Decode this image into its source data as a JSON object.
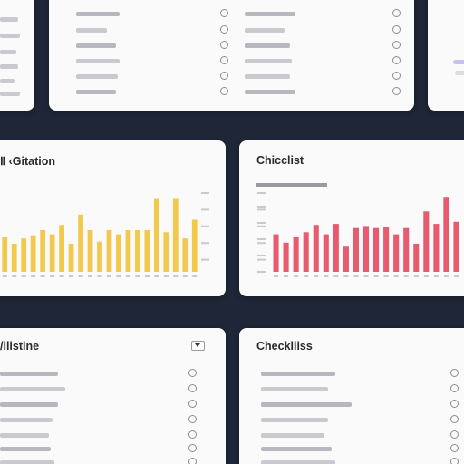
{
  "cards": {
    "top_left": {
      "rows": 6
    },
    "top_mid": {
      "rows_left": 6,
      "rows_right": 6
    },
    "top_right": {},
    "mid_left": {
      "title": "Ⅱ ‹Gitation",
      "y_ticks": [
        "",
        "",
        "",
        "",
        ""
      ],
      "x_ticks": [
        "",
        "",
        "",
        "",
        "",
        "",
        "",
        "",
        "",
        "",
        "",
        "",
        "",
        "",
        "",
        "",
        "",
        "",
        ""
      ]
    },
    "mid_right": {
      "title": "Chicclist",
      "subtitle": "",
      "y_ticks": [
        "",
        "",
        "",
        "",
        ""
      ]
    },
    "bot_left": {
      "title": "/ilistine"
    },
    "bot_right": {
      "title": "Checkliiss"
    }
  },
  "chart_data": [
    {
      "type": "bar",
      "title": "Ⅱ ‹Gitation",
      "color": "#f2c94c",
      "series": [
        {
          "values": [
            33,
            27,
            32,
            35,
            40,
            36,
            45,
            27,
            55,
            40,
            29,
            40,
            36,
            40,
            40,
            40,
            70,
            38,
            70,
            32,
            50
          ]
        }
      ]
    },
    {
      "type": "bar",
      "title": "Chicclist",
      "color": "#e85a6e",
      "series": [
        {
          "values": [
            36,
            28,
            34,
            38,
            45,
            36,
            46,
            25,
            42,
            44,
            42,
            43,
            36,
            42,
            27,
            58,
            46,
            72,
            48
          ]
        }
      ]
    }
  ]
}
